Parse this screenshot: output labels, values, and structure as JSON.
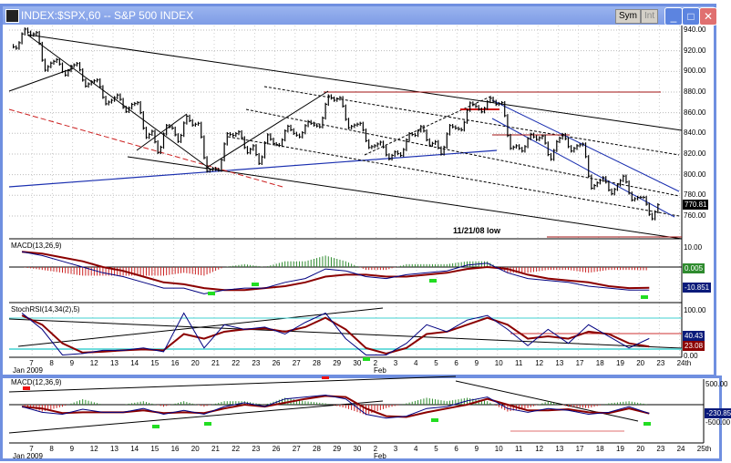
{
  "window": {
    "title": "INDEX:$SPX,60 -- S&P 500 INDEX",
    "sym_button": "Sym",
    "int_button": "Int",
    "minimize": "_",
    "maximize": "□",
    "close": "✕"
  },
  "colors": {
    "title_bar": "#7e9ce6",
    "macd_line": "#8b0000",
    "signal_line": "#000080",
    "hist_up": "#2e8b2e",
    "hist_down": "#cc2222",
    "resistance": "#a01010",
    "support_blue": "#1a2fb0",
    "marker_green": "#22dd22",
    "marker_red": "#ee1111",
    "band_cyan": "#40d0d0"
  },
  "panels": {
    "price": {
      "axis_labels": [
        "940.00",
        "920.00",
        "900.00",
        "880.00",
        "860.00",
        "840.00",
        "820.00",
        "800.00",
        "780.00",
        "760.00"
      ],
      "last_value": "770.81",
      "annotation": "11/21/08 low"
    },
    "macd": {
      "title": "MACD(13,26,9)",
      "axis_labels": [
        "10.00"
      ],
      "value_hist": "0.005",
      "value_signal": "-10.851"
    },
    "stochrsi": {
      "title": "StochRSI(14,34(2),5)",
      "axis_labels": [
        "100.00",
        "0.00"
      ],
      "value_1": "40.43",
      "value_2": "23.08"
    },
    "macd2": {
      "title": "MACD(12,36,9)",
      "axis_labels": [
        "500.00",
        "-500.00"
      ],
      "value_signal": "-230.85"
    }
  },
  "x_axis": {
    "month_jan": "Jan 2009",
    "month_feb": "Feb",
    "labels_top": [
      "7",
      "8",
      "9",
      "12",
      "13",
      "14",
      "15",
      "16",
      "20",
      "21",
      "22",
      "23",
      "26",
      "27",
      "28",
      "29",
      "30",
      "2",
      "3",
      "4",
      "5",
      "6",
      "9",
      "10",
      "11",
      "12",
      "13",
      "17",
      "18",
      "19",
      "20",
      "23",
      "24th"
    ],
    "labels_bottom": [
      "7",
      "8",
      "9",
      "12",
      "13",
      "14",
      "15",
      "16",
      "20",
      "21",
      "22",
      "23",
      "26",
      "27",
      "28",
      "29",
      "30",
      "2",
      "3",
      "4",
      "5",
      "6",
      "9",
      "10",
      "11",
      "12",
      "13",
      "17",
      "18",
      "19",
      "20",
      "23",
      "24",
      "25th"
    ]
  },
  "chart_data": {
    "type": "ohlc",
    "interval": "60 min",
    "dates": [
      "Jan 6",
      "Jan 7",
      "Jan 8",
      "Jan 9",
      "Jan 12",
      "Jan 13",
      "Jan 14",
      "Jan 15",
      "Jan 16",
      "Jan 20",
      "Jan 21",
      "Jan 22",
      "Jan 23",
      "Jan 26",
      "Jan 27",
      "Jan 28",
      "Jan 29",
      "Jan 30",
      "Feb 2",
      "Feb 3",
      "Feb 4",
      "Feb 5",
      "Feb 6",
      "Feb 9",
      "Feb 10",
      "Feb 11",
      "Feb 12",
      "Feb 13",
      "Feb 17",
      "Feb 18",
      "Feb 19",
      "Feb 20"
    ],
    "open": [
      925,
      935,
      908,
      905,
      890,
      872,
      868,
      842,
      845,
      848,
      806,
      838,
      828,
      830,
      840,
      848,
      872,
      848,
      828,
      822,
      838,
      832,
      845,
      866,
      868,
      828,
      834,
      832,
      828,
      792,
      790,
      778
    ],
    "high": [
      942,
      938,
      912,
      908,
      892,
      878,
      870,
      848,
      858,
      850,
      840,
      842,
      840,
      848,
      852,
      877,
      875,
      850,
      832,
      840,
      848,
      848,
      870,
      875,
      870,
      840,
      838,
      840,
      830,
      798,
      800,
      778
    ],
    "low": [
      922,
      900,
      895,
      885,
      868,
      860,
      835,
      818,
      830,
      803,
      804,
      820,
      808,
      828,
      836,
      846,
      845,
      826,
      814,
      818,
      828,
      818,
      843,
      860,
      825,
      822,
      812,
      822,
      786,
      780,
      775,
      755
    ],
    "close": [
      935,
      908,
      905,
      890,
      872,
      868,
      842,
      845,
      848,
      806,
      838,
      828,
      830,
      840,
      848,
      872,
      848,
      828,
      822,
      838,
      832,
      845,
      866,
      868,
      828,
      834,
      832,
      828,
      792,
      790,
      778,
      770.81
    ],
    "ylim": [
      750,
      945
    ],
    "macd": {
      "macd": [
        8,
        6,
        3,
        0,
        -3,
        -5,
        -8,
        -11,
        -11,
        -14,
        -12,
        -11,
        -11,
        -8,
        -6,
        -1,
        -2,
        -5,
        -6,
        -4,
        -3,
        -2,
        1,
        2,
        -3,
        -6,
        -7,
        -8,
        -10,
        -11,
        -12,
        -12
      ],
      "signal": [
        8,
        7,
        5,
        3,
        0,
        -2,
        -5,
        -8,
        -9,
        -11,
        -12,
        -12,
        -11,
        -10,
        -8,
        -5,
        -4,
        -4,
        -5,
        -5,
        -4,
        -3,
        -1,
        0,
        -1,
        -4,
        -6,
        -7,
        -8,
        -10,
        -11,
        -10.851
      ]
    },
    "stochrsi": {
      "k": [
        95,
        60,
        5,
        8,
        15,
        15,
        20,
        12,
        95,
        20,
        70,
        60,
        65,
        50,
        75,
        95,
        40,
        5,
        5,
        30,
        70,
        55,
        80,
        90,
        60,
        25,
        60,
        30,
        70,
        45,
        20,
        40.43
      ],
      "d": [
        90,
        70,
        30,
        10,
        12,
        15,
        17,
        15,
        50,
        40,
        55,
        60,
        62,
        55,
        65,
        85,
        60,
        20,
        8,
        20,
        50,
        55,
        70,
        85,
        70,
        40,
        45,
        40,
        55,
        50,
        30,
        23.08
      ],
      "ylim": [
        0,
        100
      ]
    },
    "macd2": {
      "macd": [
        -50,
        -200,
        -250,
        -120,
        -200,
        -200,
        -100,
        -250,
        -150,
        -250,
        -50,
        50,
        -50,
        150,
        200,
        250,
        150,
        -250,
        -350,
        -300,
        -100,
        -50,
        100,
        200,
        -100,
        -200,
        -100,
        -150,
        -250,
        -200,
        -50,
        -230
      ],
      "signal": [
        -50,
        -100,
        -220,
        -200,
        -200,
        -200,
        -150,
        -220,
        -200,
        -220,
        -100,
        0,
        -50,
        50,
        150,
        230,
        200,
        -100,
        -300,
        -320,
        -200,
        -100,
        0,
        150,
        0,
        -150,
        -150,
        -120,
        -200,
        -220,
        -100,
        -230.85
      ],
      "ylim": [
        -500,
        500
      ]
    }
  }
}
